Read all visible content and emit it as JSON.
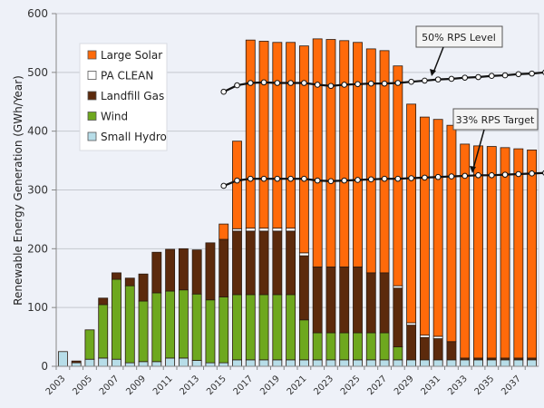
{
  "chart_data": {
    "type": "bar",
    "stacked": true,
    "title": "",
    "xlabel": "",
    "ylabel": "Renewable Energy Generation (GWh/Year)",
    "ylim": [
      0,
      600
    ],
    "yticks": [
      0,
      100,
      200,
      300,
      400,
      500,
      600
    ],
    "grid": true,
    "legend_position": "top-left",
    "categories": [
      "2003",
      "2004",
      "2005",
      "2006",
      "2007",
      "2008",
      "2009",
      "2010",
      "2011",
      "2012",
      "2013",
      "2014",
      "2015",
      "2016",
      "2017",
      "2018",
      "2019",
      "2020",
      "2021",
      "2022",
      "2023",
      "2024",
      "2025",
      "2026",
      "2027",
      "2028",
      "2029",
      "2030",
      "2031",
      "2032",
      "2033",
      "2034",
      "2035",
      "2036",
      "2037",
      "2038"
    ],
    "xtick_labels": [
      "2003",
      "2005",
      "2007",
      "2009",
      "2011",
      "2013",
      "2015",
      "2017",
      "2019",
      "2021",
      "2023",
      "2025",
      "2027",
      "2029",
      "2031",
      "2033",
      "2035",
      "2037"
    ],
    "series": [
      {
        "name": "Small Hydro",
        "color": "#b7dde8",
        "values": [
          25,
          6,
          12,
          14,
          12,
          6,
          8,
          8,
          14,
          14,
          10,
          6,
          6,
          11,
          11,
          11,
          11,
          11,
          11,
          11,
          11,
          11,
          11,
          11,
          11,
          11,
          11,
          11,
          11,
          11,
          11,
          11,
          11,
          11,
          11,
          11
        ]
      },
      {
        "name": "Wind",
        "color": "#6ea81e",
        "values": [
          0,
          0,
          50,
          91,
          136,
          131,
          103,
          117,
          114,
          116,
          113,
          107,
          112,
          111,
          111,
          111,
          111,
          111,
          68,
          46,
          46,
          46,
          46,
          46,
          46,
          22,
          0,
          0,
          0,
          0,
          0,
          0,
          0,
          0,
          0,
          0
        ]
      },
      {
        "name": "Landfill Gas",
        "color": "#5c2a0c",
        "values": [
          0,
          3,
          0,
          11,
          11,
          13,
          46,
          69,
          71,
          70,
          75,
          97,
          98,
          108,
          108,
          108,
          108,
          108,
          109,
          112,
          112,
          112,
          112,
          102,
          102,
          100,
          59,
          38,
          36,
          31,
          3,
          3,
          3,
          3,
          3,
          3
        ]
      },
      {
        "name": "PA CLEAN",
        "color": "#ffffff",
        "values": [
          0,
          0,
          0,
          0,
          0,
          0,
          0,
          0,
          0,
          0,
          0,
          0,
          0,
          4,
          5,
          5,
          5,
          5,
          5,
          0,
          0,
          0,
          0,
          0,
          0,
          4,
          4,
          4,
          4,
          0,
          0,
          0,
          0,
          0,
          0,
          0
        ]
      },
      {
        "name": "Large Solar",
        "color": "#ff6a0a",
        "values": [
          0,
          0,
          0,
          0,
          0,
          0,
          0,
          0,
          0,
          0,
          0,
          0,
          26,
          149,
          320,
          318,
          316,
          316,
          352,
          388,
          387,
          385,
          382,
          381,
          378,
          374,
          372,
          371,
          369,
          368,
          364,
          361,
          360,
          358,
          356,
          354
        ]
      }
    ],
    "legend_order": [
      "Large Solar",
      "PA CLEAN",
      "Landfill Gas",
      "Wind",
      "Small Hydro"
    ],
    "lines": [
      {
        "name": "50% RPS Level",
        "x_start": "2015",
        "values": [
          467,
          478,
          482,
          483,
          482,
          482,
          482,
          479,
          477,
          479,
          480,
          481,
          481,
          482,
          484,
          486,
          488,
          489,
          491,
          492,
          494,
          495,
          497,
          498,
          500,
          501
        ]
      },
      {
        "name": "33% RPS Target",
        "x_start": "2015",
        "values": [
          307,
          316,
          319,
          319,
          319,
          319,
          319,
          316,
          315,
          316,
          317,
          318,
          319,
          319,
          320,
          321,
          322,
          323,
          324,
          325,
          325,
          326,
          327,
          328,
          329,
          330
        ]
      }
    ],
    "annotations": [
      {
        "text": "50% RPS Level",
        "points_to": "50% RPS Level",
        "at": "2030"
      },
      {
        "text": "33% RPS Target",
        "points_to": "33% RPS Target",
        "at": "2033"
      }
    ]
  }
}
